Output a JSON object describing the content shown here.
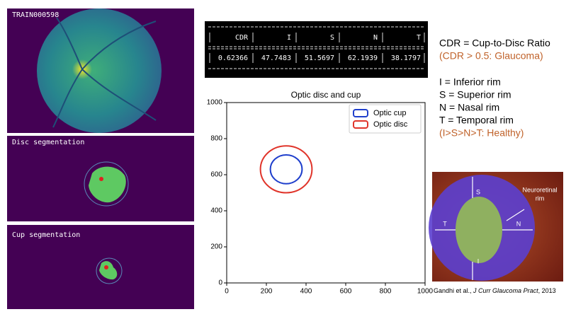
{
  "panels": [
    {
      "label": "TRAIN000598"
    },
    {
      "label": "Disc segmentation"
    },
    {
      "label": "Cup segmentation"
    }
  ],
  "table": {
    "headers": [
      "CDR",
      "I",
      "S",
      "N",
      "T"
    ],
    "row": [
      0.62366,
      47.7483,
      51.5697,
      62.1939,
      38.1797
    ]
  },
  "chart_data": {
    "type": "circles",
    "title": "Optic disc and cup",
    "xlim": [
      0,
      1000
    ],
    "ylim": [
      0,
      1000
    ],
    "xticks": [
      0,
      200,
      400,
      600,
      800,
      1000
    ],
    "yticks": [
      0,
      200,
      400,
      600,
      800,
      1000
    ],
    "legend": "upper right",
    "series": [
      {
        "name": "Optic cup",
        "color": "#1f3fcc",
        "center": [
          300,
          630
        ],
        "radius": 80
      },
      {
        "name": "Optic disc",
        "color": "#e0342a",
        "center": [
          300,
          630
        ],
        "radius": 130
      }
    ]
  },
  "notes": {
    "cdr": "CDR = Cup-to-Disc Ratio",
    "cdr_rule": "(CDR > 0.5: Glaucoma)",
    "rims": [
      "I = Inferior rim",
      "S = Superior rim",
      "N = Nasal rim",
      "T = Temporal rim"
    ],
    "rim_rule": "(I>S>N>T: Healthy)"
  },
  "figure": {
    "labels": {
      "S": "S",
      "T": "T",
      "N": "N",
      "I": "I"
    },
    "rim_label": [
      "Neuroretinal",
      "rim"
    ],
    "citation": [
      "Gandhi et al., ",
      "J Curr Glaucoma Pract",
      ", 2013"
    ]
  }
}
